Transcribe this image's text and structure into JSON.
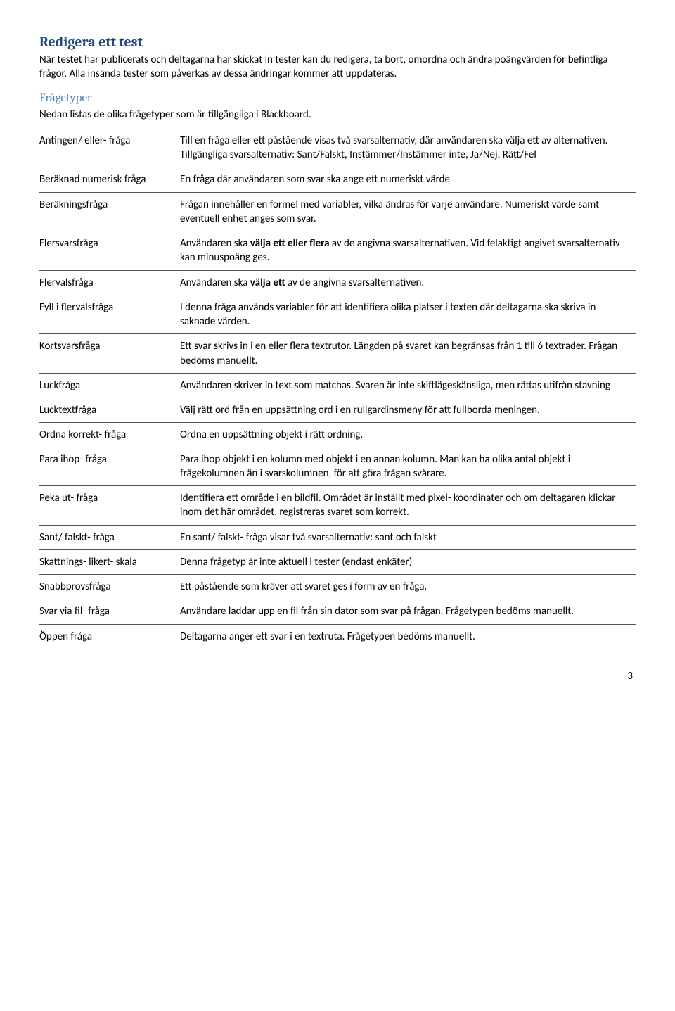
{
  "heading1": "Redigera ett test",
  "para1": "När testet har publicerats och deltagarna har skickat in tester kan du redigera, ta bort, omordna och ändra poängvärden för befintliga frågor. Alla insända tester som påverkas av dessa ändringar kommer att uppdateras.",
  "heading2": "Frågetyper",
  "para2": "Nedan listas de olika frågetyper som är tillgängliga i Blackboard.",
  "rows": [
    {
      "name": "Antingen/ eller- fråga",
      "desc": "Till en fråga eller ett påstående visas två svarsalternativ, där användaren ska välja ett av alternativen. Tillgängliga svarsalternativ: Sant/Falskt, Instämmer/Instämmer inte, Ja/Nej, Rätt/Fel",
      "sep": true
    },
    {
      "name": "Beräknad numerisk fråga",
      "desc": "En fråga där användaren som svar ska ange ett numeriskt värde",
      "sep": true
    },
    {
      "name": "Beräkningsfråga",
      "desc": "Frågan innehåller en formel med variabler, vilka ändras för varje användare. Numeriskt värde samt eventuell enhet anges som svar.",
      "sep": true
    },
    {
      "name": "Flersvarsfråga",
      "desc_html": "Användaren ska <b>välja ett eller flera</b> av de angivna svarsalternativen. Vid felaktigt angivet svarsalternativ kan minuspoäng ges.",
      "sep": true
    },
    {
      "name": "Flervalsfråga",
      "desc_html": "Användaren ska <b>välja ett</b> av de angivna svarsalternativen.",
      "sep": true
    },
    {
      "name": "Fyll i flervalsfråga",
      "desc": "I denna fråga används variabler för att identifiera olika platser i texten där deltagarna ska skriva in saknade värden.",
      "sep": true
    },
    {
      "name": "Kortsvarsfråga",
      "desc": "Ett svar skrivs in i en eller flera textrutor. Längden på svaret kan begränsas från 1 till 6 textrader. Frågan bedöms manuellt.",
      "sep": true
    },
    {
      "name": "Luckfråga",
      "desc": "Användaren skriver in text som matchas. Svaren är inte skiftlägeskänsliga, men rättas utifrån stavning",
      "sep": true
    },
    {
      "name": "Lucktextfråga",
      "desc": "Välj rätt ord från en uppsättning ord i en rullgardinsmeny för att fullborda meningen.",
      "sep": true
    },
    {
      "name": "Ordna korrekt- fråga",
      "desc": "Ordna en uppsättning objekt i rätt ordning.",
      "sep": false
    },
    {
      "name": "Para ihop- fråga",
      "desc": "Para ihop objekt i en kolumn med objekt i en annan kolumn. Man kan ha olika antal objekt i frågekolumnen än i svarskolumnen, för att göra frågan svårare.",
      "sep": true
    },
    {
      "name": "Peka ut- fråga",
      "desc": "Identifiera ett område i en bildfil. Området är inställt med pixel- koordinater och om deltagaren klickar inom det här området, registreras svaret som korrekt.",
      "sep": true
    },
    {
      "name": "Sant/ falskt- fråga",
      "desc": "En sant/ falskt- fråga visar två svarsalternativ: sant och falskt",
      "sep": true
    },
    {
      "name": "Skattnings- likert- skala",
      "desc": "Denna frågetyp är inte aktuell i tester (endast enkäter)",
      "sep": true
    },
    {
      "name": "Snabbprovsfråga",
      "desc": "Ett påstående som kräver att svaret ges i form av en fråga.",
      "sep": true
    },
    {
      "name": "Svar via fil- fråga",
      "desc": "Användare laddar upp en fil från sin dator som svar på frågan. Frågetypen bedöms manuellt.",
      "sep": true
    },
    {
      "name": "Öppen fråga",
      "desc": "Deltagarna anger ett svar i en textruta. Frågetypen bedöms manuellt.",
      "sep": false
    }
  ],
  "page_number": "3"
}
